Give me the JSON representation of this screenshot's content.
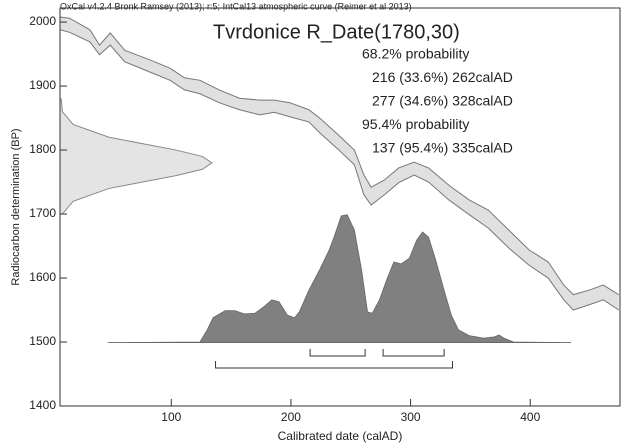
{
  "chart_data": {
    "type": "calibration",
    "header": "OxCal v4.2.4 Bronk Ramsey (2013); r:5; IntCal13 atmospheric curve (Reimer et al 2013)",
    "title": "Tvrdonice R_Date(1780,30)",
    "xlabel": "Calibrated date (calAD)",
    "ylabel": "Radiocarbon determination (BP)",
    "xlim": [
      7,
      475
    ],
    "ylim": [
      1400,
      2022
    ],
    "xticks": [
      100,
      200,
      300,
      400
    ],
    "yticks": [
      1400,
      1500,
      1600,
      1700,
      1800,
      1900,
      2000
    ],
    "calibration_curve": {
      "x": [
        7,
        15,
        32,
        40,
        49,
        61,
        82,
        99,
        111,
        124,
        140,
        157,
        174,
        186,
        199,
        215,
        224,
        240,
        253,
        261,
        267,
        278,
        290,
        303,
        315,
        332,
        349,
        365,
        382,
        399,
        415,
        428,
        436,
        449,
        461,
        474
      ],
      "upper": [
        2008,
        2006,
        1988,
        1964,
        1983,
        1956,
        1941,
        1928,
        1913,
        1909,
        1894,
        1881,
        1878,
        1878,
        1874,
        1863,
        1850,
        1823,
        1800,
        1761,
        1742,
        1753,
        1772,
        1781,
        1772,
        1745,
        1722,
        1706,
        1675,
        1644,
        1625,
        1589,
        1574,
        1581,
        1589,
        1574
      ],
      "lower": [
        1988,
        1984,
        1969,
        1949,
        1964,
        1938,
        1922,
        1909,
        1894,
        1888,
        1874,
        1863,
        1855,
        1859,
        1852,
        1844,
        1827,
        1800,
        1777,
        1730,
        1714,
        1730,
        1749,
        1761,
        1750,
        1722,
        1699,
        1678,
        1647,
        1620,
        1600,
        1566,
        1550,
        1558,
        1566,
        1550
      ]
    },
    "radiocarbon": {
      "y": [
        1880,
        1860,
        1840,
        1820,
        1800,
        1790,
        1780,
        1770,
        1760,
        1740,
        1720,
        1700
      ],
      "x": [
        8,
        9,
        18,
        48,
        104,
        126,
        134,
        126,
        104,
        48,
        18,
        9
      ]
    },
    "posterior": {
      "baseline": 1499,
      "x": [
        47,
        124,
        130,
        135,
        145,
        153,
        161,
        170,
        178,
        184,
        190,
        197,
        203,
        207,
        215,
        224,
        232,
        236,
        242,
        247,
        253,
        259,
        264,
        268,
        274,
        280,
        286,
        292,
        299,
        305,
        310,
        315,
        321,
        328,
        334,
        340,
        349,
        361,
        370,
        374,
        378,
        386,
        434
      ],
      "y": [
        1499,
        1500,
        1519,
        1538,
        1549,
        1549,
        1544,
        1545,
        1556,
        1566,
        1563,
        1542,
        1538,
        1547,
        1581,
        1613,
        1644,
        1664,
        1697,
        1699,
        1675,
        1613,
        1547,
        1545,
        1566,
        1597,
        1625,
        1622,
        1631,
        1659,
        1672,
        1664,
        1628,
        1581,
        1542,
        1519,
        1510,
        1506,
        1508,
        1511,
        1506,
        1500,
        1499
      ]
    },
    "probability_groups": [
      {
        "label": "68.2% probability",
        "ranges": [
          {
            "label": "216 (33.6%) 262calAD",
            "from": 216,
            "to": 262
          },
          {
            "label": "277 (34.6%) 328calAD",
            "from": 277,
            "to": 328
          }
        ]
      },
      {
        "label": "95.4% probability",
        "ranges": [
          {
            "label": "137 (95.4%) 335calAD",
            "from": 137,
            "to": 335
          }
        ]
      }
    ]
  }
}
